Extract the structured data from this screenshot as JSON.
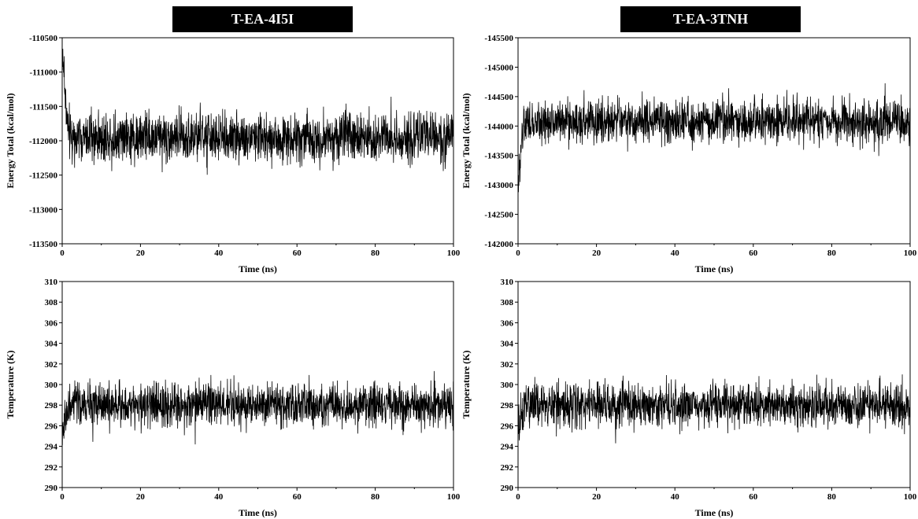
{
  "panels": [
    {
      "id": "p-energy-4i5i",
      "banner": "T-EA-4I5I",
      "type": "line",
      "xlabel": "Time (ns)",
      "ylabel": "Energy Total (kcal/mol)",
      "xlim": [
        0,
        100
      ],
      "ylim": [
        -113500,
        -110500
      ],
      "xticks": [
        0,
        20,
        40,
        60,
        80,
        100
      ],
      "yticks": [
        -113500,
        -113000,
        -112500,
        -112000,
        -111500,
        -111000,
        -110500
      ],
      "mean": -111950,
      "noise": 260,
      "initial": -110600,
      "color": "#000000"
    },
    {
      "id": "p-energy-3tnh",
      "banner": "T-EA-3TNH",
      "type": "line",
      "xlabel": "Time (ns)",
      "ylabel": "Energy Total (kcal/mol)",
      "xlim": [
        0,
        100
      ],
      "ylim": [
        -145500,
        -142000
      ],
      "ylim_note": "axis inverted (-145500 at top, -142000 at bottom)",
      "xticks": [
        0,
        20,
        40,
        60,
        80,
        100
      ],
      "yticks": [
        -145500,
        -145000,
        -144500,
        -144000,
        -143500,
        -143000,
        -142500,
        -142000
      ],
      "inverted": true,
      "mean": -144080,
      "noise": 260,
      "initial": -143000,
      "color": "#000000"
    },
    {
      "id": "p-temp-4i5i",
      "banner": "",
      "type": "line",
      "xlabel": "Time (ns)",
      "ylabel": "Temperature (K)",
      "xlim": [
        0,
        100
      ],
      "ylim": [
        290,
        310
      ],
      "xticks": [
        0,
        20,
        40,
        60,
        80,
        100
      ],
      "yticks": [
        290,
        292,
        294,
        296,
        298,
        300,
        302,
        304,
        306,
        308,
        310
      ],
      "mean": 298,
      "noise": 1.5,
      "initial": 295,
      "color": "#000000"
    },
    {
      "id": "p-temp-3tnh",
      "banner": "",
      "type": "line",
      "xlabel": "Time (ns)",
      "ylabel": "Temperature (K)",
      "xlim": [
        0,
        100
      ],
      "ylim": [
        290,
        310
      ],
      "xticks": [
        0,
        20,
        40,
        60,
        80,
        100
      ],
      "yticks": [
        290,
        292,
        294,
        296,
        298,
        300,
        302,
        304,
        306,
        308,
        310
      ],
      "mean": 298,
      "noise": 1.5,
      "initial": 295,
      "color": "#000000"
    }
  ],
  "banners": {
    "left": "T-EA-4I5I",
    "right": "T-EA-3TNH"
  }
}
